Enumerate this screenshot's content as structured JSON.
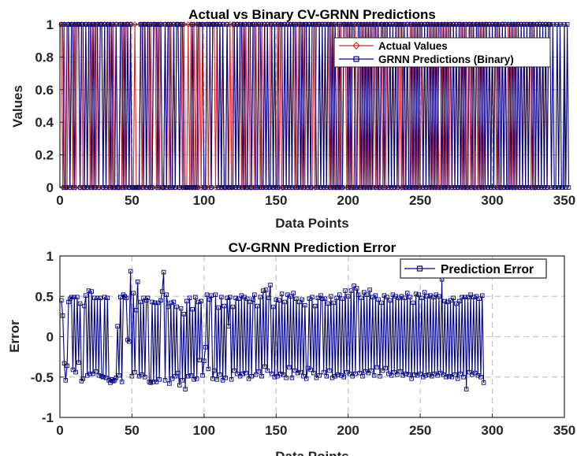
{
  "chart_data": [
    {
      "type": "line",
      "title": "Actual vs Binary CV-GRNN Predictions",
      "xlabel": "Data Points",
      "ylabel": "Values",
      "xlim": [
        0,
        350
      ],
      "ylim": [
        0,
        1
      ],
      "xticks": [
        "0",
        "50",
        "100",
        "150",
        "200",
        "250",
        "300",
        "350"
      ],
      "yticks": [
        "0",
        "0.2",
        "0.4",
        "0.6",
        "0.8",
        "1"
      ],
      "grid": true,
      "legend_position": "top-right",
      "series": [
        {
          "name": "Actual Values",
          "color": "#d62728",
          "marker": "diamond",
          "values": [
            1,
            0,
            1,
            0,
            0,
            1,
            0,
            1,
            0,
            1,
            0,
            1,
            1,
            0,
            1,
            0,
            0,
            1,
            0,
            1,
            0,
            1,
            0,
            1,
            0,
            1,
            0,
            1,
            1,
            0,
            1,
            0,
            1,
            0,
            1,
            0,
            1,
            0,
            1,
            0,
            0,
            1,
            0,
            1,
            0,
            1,
            1,
            0,
            1,
            0,
            0,
            1,
            0,
            0,
            0,
            1,
            0,
            1,
            1,
            0,
            1,
            0,
            1,
            0,
            1,
            1,
            0,
            1,
            0,
            1,
            0,
            0,
            1,
            0,
            1,
            0,
            1,
            0,
            1,
            0,
            1,
            1,
            0,
            1,
            0,
            1,
            0,
            0,
            1,
            0,
            1,
            0,
            1,
            0,
            1,
            0,
            1,
            0,
            1,
            0,
            0,
            1,
            0,
            1,
            0,
            1,
            1,
            0,
            1,
            0,
            1,
            0,
            1,
            0,
            0,
            1,
            0,
            1,
            0,
            1,
            1,
            0,
            1,
            0,
            1,
            0,
            1,
            0,
            1,
            0,
            1,
            0,
            0,
            1,
            0,
            1,
            0,
            1,
            0,
            1,
            0,
            1,
            0,
            1,
            0,
            1,
            1,
            0,
            1,
            0,
            1,
            0,
            1,
            0,
            0,
            1,
            0,
            1,
            0,
            1,
            0,
            1,
            0,
            1,
            0,
            1,
            1,
            0,
            1,
            0,
            1,
            0,
            1,
            0,
            0,
            1,
            0,
            1,
            1,
            1,
            0,
            1,
            0,
            1,
            0,
            1,
            0,
            1,
            0,
            1,
            0,
            0,
            1,
            0,
            1,
            0,
            1,
            1,
            0,
            1,
            0,
            1,
            0,
            0,
            1,
            0,
            1,
            0,
            1,
            0,
            1,
            0,
            1,
            0,
            1,
            0,
            1,
            1,
            0,
            1,
            0,
            0,
            1,
            0,
            1,
            0,
            1,
            0,
            1,
            0,
            1,
            0,
            1,
            1,
            0,
            1,
            0,
            1,
            0,
            0,
            1,
            0,
            1,
            0,
            1,
            0,
            1,
            0,
            1,
            0,
            1,
            0,
            1,
            0,
            1,
            1,
            0,
            1,
            0,
            1,
            0,
            1,
            0,
            0,
            1,
            0,
            1,
            0,
            1,
            0,
            1,
            0,
            1,
            0,
            1,
            0,
            1,
            1,
            0,
            1,
            0,
            1,
            0,
            1,
            0,
            1,
            0,
            0,
            1,
            0,
            1,
            0,
            1,
            0,
            1,
            1,
            0,
            1,
            0,
            1,
            0,
            1,
            0,
            1,
            0,
            0,
            1,
            0,
            1,
            0,
            1,
            0,
            1,
            0,
            1,
            0,
            1,
            1,
            0,
            1,
            0,
            1,
            0,
            1,
            0,
            1,
            0,
            1,
            0,
            0,
            1,
            0,
            1,
            0,
            1,
            0,
            1,
            0,
            1
          ]
        },
        {
          "name": "GRNN Predictions (Binary)",
          "color": "#000080",
          "marker": "square",
          "values": [
            1,
            1,
            0,
            0,
            1,
            1,
            0,
            1,
            1,
            0,
            1,
            1,
            1,
            0,
            1,
            1,
            0,
            1,
            0,
            1,
            1,
            0,
            1,
            0,
            1,
            1,
            0,
            1,
            1,
            0,
            1,
            0,
            1,
            1,
            0,
            1,
            0,
            0,
            1,
            0,
            0,
            1,
            1,
            0,
            1,
            0,
            1,
            0,
            1,
            0,
            0,
            0,
            0,
            0,
            0,
            1,
            1,
            0,
            1,
            0,
            1,
            1,
            0,
            0,
            1,
            1,
            1,
            0,
            1,
            1,
            0,
            0,
            1,
            0,
            1,
            1,
            0,
            0,
            1,
            0,
            1,
            1,
            0,
            1,
            1,
            0,
            0,
            0,
            0,
            0,
            0,
            1,
            0,
            0,
            0,
            1,
            1,
            1,
            1,
            0,
            0,
            1,
            1,
            1,
            0,
            1,
            1,
            1,
            1,
            0,
            1,
            0,
            1,
            0,
            0,
            1,
            0,
            0,
            0,
            0,
            1,
            0,
            1,
            0,
            1,
            1,
            0,
            1,
            0,
            0,
            1,
            1,
            0,
            1,
            1,
            0,
            0,
            1,
            1,
            0,
            0,
            1,
            0,
            1,
            0,
            0,
            1,
            0,
            1,
            0,
            0,
            1,
            1,
            1,
            0,
            1,
            0,
            1,
            0,
            1,
            0,
            1,
            1,
            0,
            0,
            1,
            0,
            1,
            0,
            1,
            1,
            0,
            1,
            0,
            1,
            1,
            1,
            0,
            0,
            1,
            0,
            1,
            0,
            1,
            0,
            1,
            1,
            0,
            1,
            0,
            1,
            0,
            0,
            1,
            0,
            0,
            1,
            1,
            1,
            0,
            1,
            0,
            1,
            1,
            0,
            0,
            1,
            1,
            0,
            1,
            0,
            1,
            0,
            1,
            0,
            1,
            0,
            1,
            1,
            0,
            1,
            0,
            1,
            1,
            0,
            1,
            1,
            0,
            1,
            0,
            1,
            0,
            1,
            0,
            1,
            1,
            1,
            0,
            1,
            0,
            1,
            0,
            0,
            1,
            0,
            1,
            0,
            1,
            0,
            1,
            1,
            0,
            1,
            0,
            1,
            0,
            1,
            0,
            1,
            0,
            1,
            0,
            1,
            1,
            0,
            1,
            0,
            1,
            0,
            1,
            1,
            0,
            1,
            0,
            1,
            0,
            1,
            0,
            1,
            0,
            1,
            0,
            0,
            1,
            1,
            0,
            1,
            0,
            1,
            1,
            0,
            1,
            0,
            1,
            0,
            1,
            0,
            1,
            0,
            1,
            0,
            1,
            1,
            0,
            1,
            0,
            1,
            0,
            1,
            0,
            0,
            1,
            0,
            1,
            0,
            1,
            0,
            1,
            0,
            1,
            0,
            1,
            0,
            1,
            0,
            1,
            1,
            0,
            1,
            0,
            1,
            0,
            1,
            0,
            1,
            0,
            1,
            0,
            1,
            1,
            0,
            1,
            0,
            0,
            1,
            0,
            1,
            0,
            0,
            1,
            0,
            1,
            0
          ]
        }
      ]
    },
    {
      "type": "line",
      "title": "CV-GRNN Prediction Error",
      "xlabel": "Data Points",
      "ylabel": "Error",
      "xlim": [
        0,
        350
      ],
      "ylim": [
        -1,
        1
      ],
      "xticks": [
        "0",
        "50",
        "100",
        "150",
        "200",
        "250",
        "300",
        "350"
      ],
      "yticks": [
        "-1",
        "-0.5",
        "0",
        "0.5",
        "1"
      ],
      "grid": true,
      "legend_position": "top-right",
      "series": [
        {
          "name": "Prediction Error",
          "color": "#000080",
          "marker": "square",
          "values": [
            0.45,
            0.26,
            -0.33,
            -0.54,
            -0.36,
            0.43,
            0.47,
            0.49,
            -0.41,
            0.49,
            -0.44,
            0.49,
            -0.32,
            0.41,
            -0.55,
            -0.52,
            0.38,
            0.51,
            -0.48,
            0.57,
            -0.46,
            0.56,
            -0.46,
            0.48,
            -0.43,
            0.48,
            -0.48,
            0.48,
            -0.49,
            -0.5,
            0.49,
            -0.51,
            0.48,
            -0.54,
            -0.57,
            -0.53,
            -0.55,
            -0.54,
            -0.51,
            0.13,
            -0.48,
            0.49,
            -0.56,
            0.52,
            0.5,
            0.48,
            -0.04,
            -0.06,
            0.81,
            -0.49,
            0.54,
            -0.44,
            0.33,
            0.68,
            -0.49,
            0.43,
            -0.47,
            0.48,
            -0.5,
            0.45,
            0.48,
            -0.56,
            -0.57,
            0.43,
            -0.56,
            0.42,
            -0.56,
            0.42,
            -0.53,
            0.45,
            0.56,
            0.8,
            -0.54,
            0.52,
            0.37,
            -0.58,
            0.42,
            -0.52,
            0.43,
            -0.49,
            0.37,
            -0.45,
            -0.6,
            0.35,
            -0.54,
            0.28,
            -0.65,
            0.44,
            -0.49,
            0.48,
            -0.48,
            0.34,
            -0.53,
            0.49,
            -0.52,
            0.43,
            -0.29,
            0.44,
            -0.48,
            -0.3,
            -0.13,
            0.52,
            -0.4,
            0.46,
            0.51,
            -0.52,
            -0.42,
            0.52,
            -0.53,
            0.36,
            -0.47,
            0.49,
            -0.54,
            0.38,
            -0.51,
            0.48,
            0.13,
            0.49,
            -0.53,
            0.37,
            -0.42,
            0.48,
            -0.46,
            0.47,
            -0.49,
            0.51,
            -0.46,
            0.49,
            -0.45,
            0.47,
            -0.52,
            0.43,
            -0.49,
            0.46,
            0.52,
            -0.47,
            0.38,
            -0.43,
            0.49,
            -0.49,
            0.57,
            -0.37,
            0.58,
            -0.42,
            0.48,
            0.64,
            -0.46,
            0.37,
            -0.5,
            0.46,
            -0.49,
            0.45,
            -0.46,
            0.53,
            -0.47,
            0.43,
            -0.51,
            0.52,
            -0.38,
            0.5,
            -0.51,
            0.54,
            -0.42,
            0.47,
            -0.45,
            0.43,
            -0.44,
            0.46,
            -0.49,
            0.39,
            -0.52,
            -0.39,
            0.47,
            -0.41,
            0.49,
            -0.45,
            0.38,
            -0.51,
            0.48,
            -0.48,
            0.51,
            0.47,
            -0.44,
            0.47,
            -0.49,
            0.41,
            -0.42,
            0.5,
            -0.51,
            0.42,
            -0.49,
            0.48,
            -0.47,
            0.52,
            -0.48,
            0.47,
            -0.5,
            0.57,
            -0.44,
            0.5,
            -0.46,
            0.57,
            -0.49,
            0.63,
            -0.46,
            0.6,
            0.52,
            -0.45,
            0.48,
            -0.49,
            0.55,
            -0.43,
            0.52,
            -0.45,
            0.58,
            -0.42,
            0.49,
            -0.48,
            0.51,
            -0.38,
            0.46,
            -0.49,
            0.42,
            -0.42,
            0.51,
            -0.39,
            0.49,
            -0.46,
            0.45,
            -0.48,
            0.52,
            -0.44,
            0.5,
            -0.47,
            0.48,
            -0.43,
            0.5,
            -0.48,
            0.48,
            -0.46,
            0.54,
            -0.47,
            0.49,
            -0.52,
            0.42,
            -0.47,
            0.53,
            -0.48,
            0.52,
            -0.46,
            0.48,
            -0.5,
            0.55,
            -0.48,
            0.5,
            -0.47,
            0.51,
            -0.49,
            0.49,
            -0.46,
            0.52,
            -0.48,
            0.5,
            -0.45,
            0.71,
            -0.47,
            0.44,
            -0.5,
            0.43,
            -0.49,
            0.45,
            -0.5,
            0.48,
            -0.47,
            0.41,
            -0.52,
            0.44,
            -0.46,
            0.49,
            -0.5,
            0.49,
            -0.65,
            0.49,
            -0.44,
            0.52,
            -0.47,
            0.49,
            -0.45,
            0.5,
            -0.48,
            0.47,
            -0.5,
            0.51,
            -0.57
          ]
        }
      ]
    }
  ]
}
